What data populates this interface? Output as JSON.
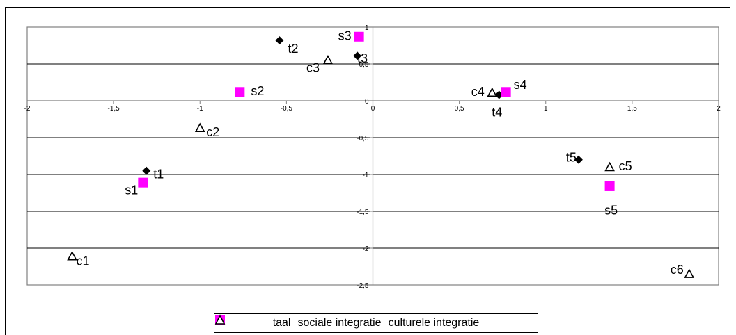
{
  "chart_data": {
    "type": "scatter",
    "title": "",
    "xlabel": "",
    "ylabel": "",
    "xlim": [
      -2,
      2
    ],
    "ylim": [
      -2.5,
      1
    ],
    "x_ticks": [
      "-2",
      "-1,5",
      "-1",
      "-0,5",
      "0",
      "0,5",
      "1",
      "1,5",
      "2"
    ],
    "y_ticks": [
      "1",
      "0,5",
      "0",
      "-0,5",
      "-1",
      "-1,5",
      "-2",
      "-2,5"
    ],
    "grid": "horizontal",
    "legend_position": "bottom",
    "series": [
      {
        "name": "taal",
        "marker": "diamond",
        "color": "#000000",
        "points": [
          {
            "label": "t1",
            "x": -1.31,
            "y": -0.95
          },
          {
            "label": "t2",
            "x": -0.54,
            "y": 0.82
          },
          {
            "label": "t3",
            "x": -0.09,
            "y": 0.61
          },
          {
            "label": "t4",
            "x": 0.73,
            "y": 0.08
          },
          {
            "label": "t5",
            "x": 1.19,
            "y": -0.8
          }
        ]
      },
      {
        "name": "sociale integratie",
        "marker": "square",
        "color": "#ff00ff",
        "points": [
          {
            "label": "s1",
            "x": -1.33,
            "y": -1.11
          },
          {
            "label": "s2",
            "x": -0.77,
            "y": 0.12
          },
          {
            "label": "s3",
            "x": -0.08,
            "y": 0.87
          },
          {
            "label": "s4",
            "x": 0.77,
            "y": 0.12
          },
          {
            "label": "s5",
            "x": 1.37,
            "y": -1.16
          }
        ]
      },
      {
        "name": "culturele integratie",
        "marker": "triangle",
        "color": "#000000",
        "points": [
          {
            "label": "c1",
            "x": -1.74,
            "y": -2.11
          },
          {
            "label": "c2",
            "x": -1.0,
            "y": -0.37
          },
          {
            "label": "c3",
            "x": -0.26,
            "y": 0.55
          },
          {
            "label": "c4",
            "x": 0.69,
            "y": 0.11
          },
          {
            "label": "c5",
            "x": 1.37,
            "y": -0.9
          },
          {
            "label": "c6",
            "x": 1.83,
            "y": -2.35
          }
        ]
      }
    ]
  }
}
